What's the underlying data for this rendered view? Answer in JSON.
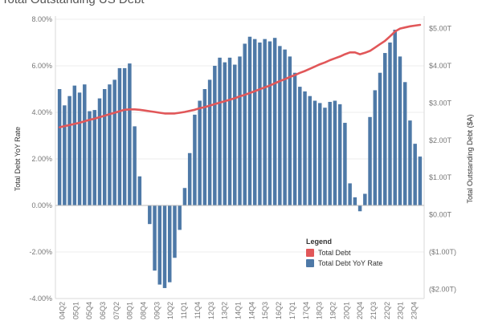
{
  "title": "Total Outstanding US Debt",
  "colors": {
    "debt_line": "#e15759",
    "bars": "#4e79a7"
  },
  "legend": {
    "title": "Legend",
    "items": [
      {
        "label": "Total Debt",
        "color": "#e15759"
      },
      {
        "label": "Total Debt YoY Rate",
        "color": "#4e79a7"
      }
    ]
  },
  "chart_data": {
    "type": "bar",
    "title": "Total Outstanding US Debt",
    "ylabel": "Total Debt YoY Rate",
    "y2label": "Total Outstanding Debt ($A)",
    "ylim": [
      -4,
      8
    ],
    "y2lim": [
      -2.25,
      5.25
    ],
    "y_ticks": [
      "8.00%",
      "6.00%",
      "4.00%",
      "2.00%",
      "0.00%",
      "-2.00%",
      "-4.00%"
    ],
    "y2_ticks": [
      "$5.00T",
      "$4.00T",
      "$3.00T",
      "$2.00T",
      "$1.00T",
      "$0.00T",
      "($1.00T)",
      "($2.00T)"
    ],
    "x_tick_labels": [
      "04Q2",
      "05Q1",
      "05Q4",
      "06Q3",
      "07Q2",
      "08Q1",
      "08Q4",
      "09Q3",
      "10Q2",
      "11Q1",
      "11Q4",
      "12Q3",
      "13Q2",
      "14Q1",
      "14Q4",
      "15Q3",
      "16Q2",
      "17Q1",
      "17Q4",
      "18Q3",
      "19Q2",
      "20Q1",
      "20Q4",
      "21Q3",
      "22Q2",
      "23Q1",
      "23Q4"
    ],
    "grid": true,
    "legend_position": "bottom-right",
    "series": [
      {
        "name": "Total Debt YoY Rate",
        "type": "bar",
        "axis": "left",
        "values": [
          5.0,
          4.3,
          4.7,
          5.15,
          4.85,
          5.2,
          4.05,
          4.1,
          4.6,
          5.0,
          5.2,
          5.4,
          5.9,
          5.9,
          6.1,
          3.4,
          1.25,
          0.0,
          -0.8,
          -2.8,
          -3.4,
          -3.55,
          -3.3,
          -2.25,
          -1.05,
          0.75,
          2.25,
          3.9,
          4.5,
          5.0,
          5.4,
          6.0,
          6.35,
          6.15,
          6.35,
          6.05,
          6.4,
          6.95,
          7.25,
          7.15,
          7.0,
          7.15,
          7.05,
          7.2,
          6.85,
          6.7,
          6.4,
          5.7,
          5.1,
          4.9,
          4.7,
          4.5,
          4.4,
          4.2,
          4.45,
          4.5,
          4.35,
          3.55,
          0.95,
          0.35,
          -0.25,
          0.5,
          3.8,
          4.95,
          5.7,
          6.55,
          7.0,
          7.55,
          6.4,
          5.3,
          3.65,
          2.65,
          2.1
        ],
        "labels": [
          "04Q2"
        ]
      },
      {
        "name": "Total Debt",
        "type": "line",
        "axis": "right",
        "values": [
          2.35,
          2.38,
          2.41,
          2.44,
          2.47,
          2.51,
          2.55,
          2.58,
          2.62,
          2.66,
          2.7,
          2.74,
          2.78,
          2.82,
          2.83,
          2.83,
          2.82,
          2.8,
          2.78,
          2.76,
          2.74,
          2.72,
          2.72,
          2.72,
          2.74,
          2.76,
          2.79,
          2.82,
          2.86,
          2.89,
          2.93,
          2.97,
          3.01,
          3.05,
          3.09,
          3.13,
          3.18,
          3.22,
          3.27,
          3.32,
          3.37,
          3.42,
          3.47,
          3.53,
          3.59,
          3.64,
          3.7,
          3.75,
          3.81,
          3.86,
          3.92,
          3.98,
          4.04,
          4.09,
          4.15,
          4.2,
          4.25,
          4.31,
          4.36,
          4.36,
          4.31,
          4.35,
          4.4,
          4.49,
          4.58,
          4.67,
          4.79,
          4.92,
          5.0,
          5.03,
          5.06,
          5.08,
          5.1
        ]
      }
    ]
  }
}
